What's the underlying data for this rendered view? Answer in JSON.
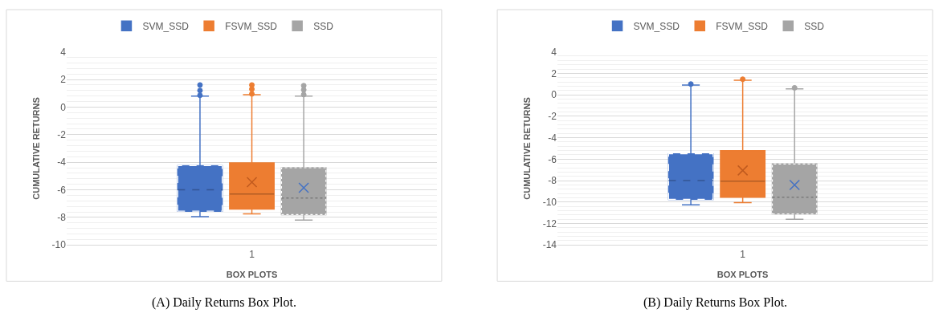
{
  "chart_data": [
    {
      "type": "box",
      "xlabel": "BOX PLOTS",
      "ylabel": "CUMULATIVE RETURNS",
      "categories": [
        "1"
      ],
      "ylim": [
        -10,
        4
      ],
      "yticks": [
        -10,
        -8,
        -6,
        -4,
        -2,
        0,
        2,
        4
      ],
      "grid": "y",
      "legend": "top",
      "annotations": [
        "(A) Daily Returns Box Plot."
      ],
      "series": [
        {
          "name": "SVM_SSD",
          "color": "#4472c4",
          "line_style": "dashed",
          "boxes": [
            {
              "low": -7.95,
              "q1": -7.55,
              "median": -6.0,
              "q3": -4.25,
              "high": 0.8,
              "outliers": [
                1.6,
                1.2,
                0.85
              ]
            }
          ]
        },
        {
          "name": "FSVM_SSD",
          "color": "#ed7d31",
          "line_style": "solid",
          "boxes": [
            {
              "low": -7.75,
              "q1": -7.4,
              "median": -6.3,
              "q3": -4.05,
              "high": 0.9,
              "mean": -5.45,
              "outliers": [
                1.6,
                1.3,
                0.95
              ]
            }
          ]
        },
        {
          "name": "SSD",
          "color": "#a5a5a5",
          "line_style": "dotted",
          "boxes": [
            {
              "low": -8.2,
              "q1": -7.8,
              "median": -6.6,
              "q3": -4.4,
              "high": 0.8,
              "mean": -5.85,
              "outliers": [
                1.55,
                1.25,
                0.9
              ]
            }
          ]
        }
      ]
    },
    {
      "type": "box",
      "xlabel": "BOX PLOTS",
      "ylabel": "CUMULATIVE RETURNS",
      "categories": [
        "1"
      ],
      "ylim": [
        -14,
        4
      ],
      "yticks": [
        -14,
        -12,
        -10,
        -8,
        -6,
        -4,
        -2,
        0,
        2,
        4
      ],
      "grid": "y",
      "legend": "top",
      "annotations": [
        "(B) Daily Returns Box Plot."
      ],
      "series": [
        {
          "name": "SVM_SSD",
          "color": "#4472c4",
          "line_style": "dashed",
          "boxes": [
            {
              "low": -10.25,
              "q1": -9.75,
              "median": -8.0,
              "q3": -5.5,
              "high": 0.9,
              "outliers": [
                1.0
              ]
            }
          ]
        },
        {
          "name": "FSVM_SSD",
          "color": "#ed7d31",
          "line_style": "solid",
          "boxes": [
            {
              "low": -10.05,
              "q1": -9.55,
              "median": -8.05,
              "q3": -5.2,
              "high": 1.35,
              "mean": -7.05,
              "outliers": [
                1.45
              ]
            }
          ]
        },
        {
          "name": "SSD",
          "color": "#a5a5a5",
          "line_style": "dotted",
          "boxes": [
            {
              "low": -11.6,
              "q1": -11.1,
              "median": -9.55,
              "q3": -6.45,
              "high": 0.55,
              "mean": -8.4,
              "outliers": [
                0.65
              ]
            }
          ]
        }
      ]
    }
  ]
}
